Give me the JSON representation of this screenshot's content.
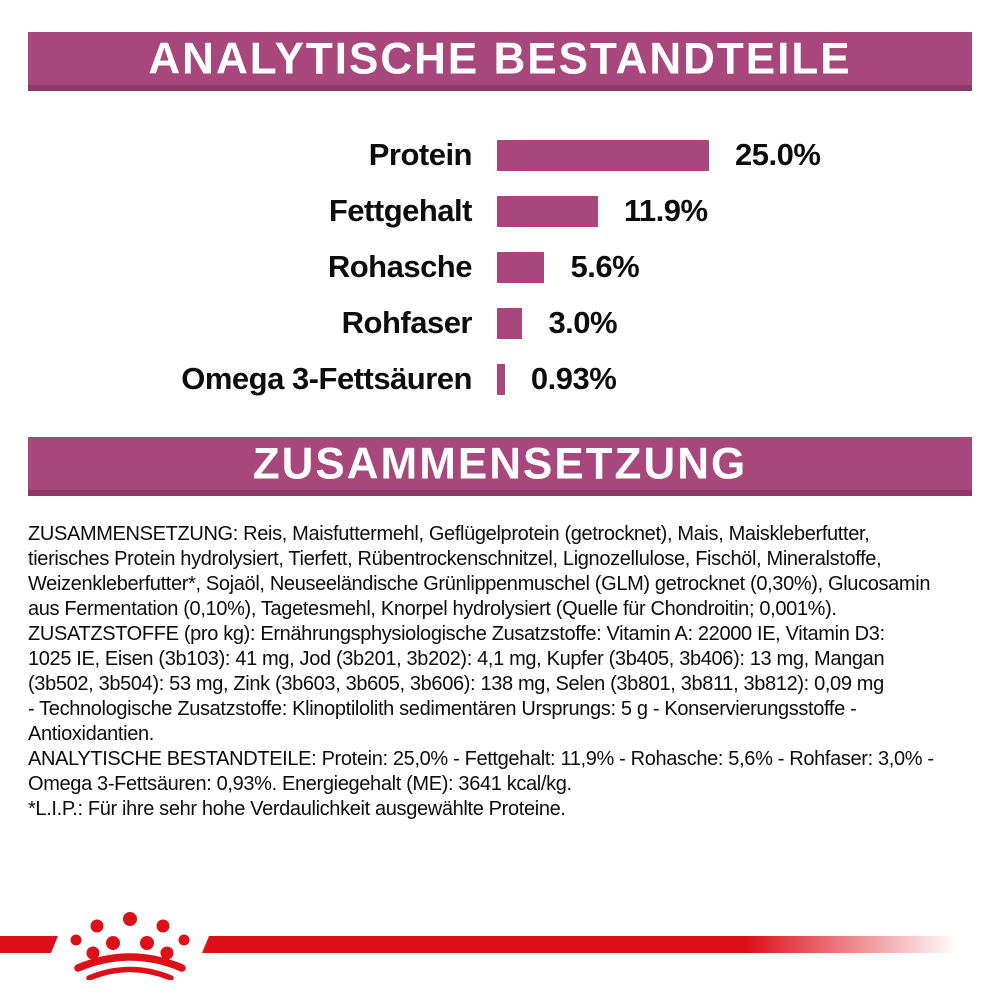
{
  "colors": {
    "magenta": "#A7477B",
    "banner_bottom": "#8E3A66",
    "brand_red": "#DD1019",
    "text": "#0D0D0D"
  },
  "header_analytic": {
    "title": "ANALYTISCHE BESTANDTEILE"
  },
  "header_composition": {
    "title": "ZUSAMMENSETZUNG"
  },
  "chart_data": {
    "type": "bar",
    "orientation": "horizontal",
    "title": "ANALYTISCHE BESTANDTEILE",
    "categories": [
      "Protein",
      "Fettgehalt",
      "Rohasche",
      "Rohfaser",
      "Omega 3-Fettsäuren"
    ],
    "values": [
      25.0,
      11.9,
      5.6,
      3.0,
      0.93
    ],
    "value_labels": [
      "25.0%",
      "11.9%",
      "5.6%",
      "3.0%",
      "0.93%"
    ],
    "xlim": [
      0,
      25
    ],
    "bar_color": "#A7477B",
    "grid": false,
    "legend": false
  },
  "composition": {
    "lines": [
      "ZUSAMMENSETZUNG: Reis, Maisfuttermehl, Geflügelprotein (getrocknet), Mais, Maiskleberfutter,",
      "tierisches Protein hydrolysiert, Tierfett, Rübentrockenschnitzel, Lignozellulose, Fischöl, Mineralstoffe,",
      "Weizenkleberfutter*, Sojaöl, Neuseeländische Grünlippenmuschel (GLM) getrocknet (0,30%), Glucosamin",
      "aus Fermentation (0,10%), Tagetesmehl, Knorpel hydrolysiert (Quelle für Chondroitin; 0,001%).",
      "ZUSATZSTOFFE (pro kg): Ernährungsphysiologische Zusatzstoffe: Vitamin A: 22000 IE, Vitamin D3:",
      "1025 IE, Eisen (3b103): 41 mg, Jod (3b201, 3b202): 4,1 mg, Kupfer (3b405, 3b406): 13 mg, Mangan",
      "(3b502, 3b504): 53 mg, Zink (3b603, 3b605, 3b606): 138 mg, Selen (3b801, 3b811, 3b812): 0,09 mg",
      "- Technologische Zusatzstoffe: Klinoptilolith sedimentären Ursprungs: 5 g - Konservierungsstoffe -",
      "Antioxidantien.",
      "ANALYTISCHE BESTANDTEILE: Protein: 25,0% - Fettgehalt: 11,9% - Rohasche: 5,6% - Rohfaser: 3,0% -",
      "Omega 3-Fettsäuren: 0,93%. Energiegehalt (ME): 3641 kcal/kg.",
      "*L.I.P.: Für ihre sehr hohe Verdaulichkeit ausgewählte Proteine."
    ]
  },
  "footer": {
    "logo": "royal-canin-crown"
  }
}
